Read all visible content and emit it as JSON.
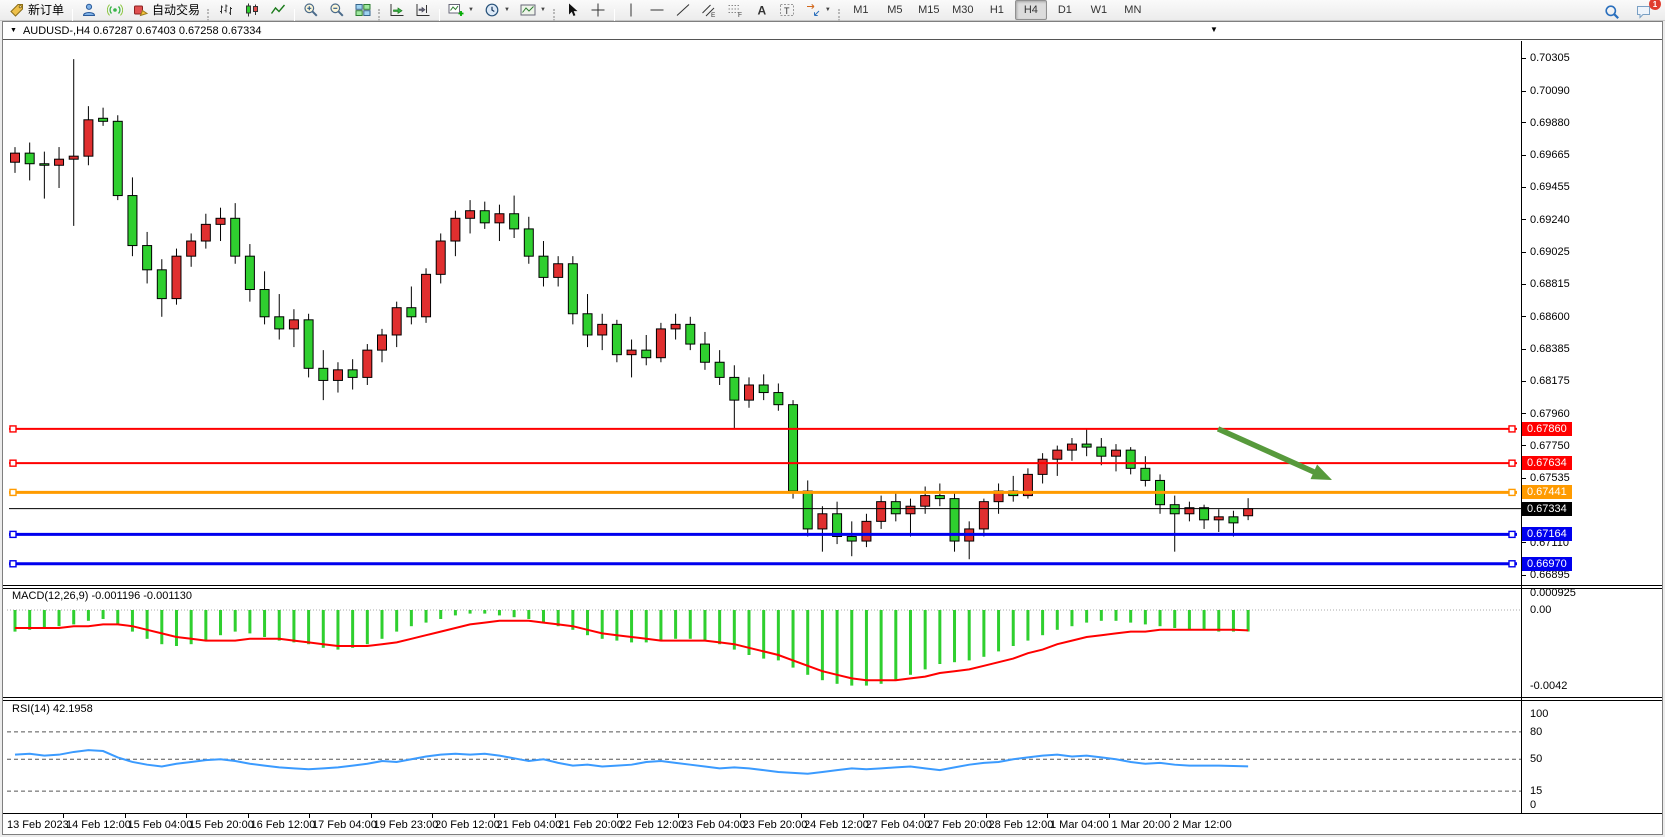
{
  "toolbar": {
    "buttons": [
      {
        "name": "new-order-button",
        "icon": "tag-icon",
        "label": "新订单"
      },
      {
        "type": "sep"
      },
      {
        "name": "metaeditor-button",
        "icon": "person-icon"
      },
      {
        "name": "signals-button",
        "icon": "signal-icon"
      },
      {
        "name": "auto-trading-button",
        "icon": "autotrade-icon",
        "label": "自动交易"
      },
      {
        "type": "grip"
      },
      {
        "name": "bar-chart-button",
        "icon": "bars-icon"
      },
      {
        "name": "candle-chart-button",
        "icon": "candles-icon"
      },
      {
        "name": "line-chart-button",
        "icon": "linechart-icon"
      },
      {
        "type": "sep"
      },
      {
        "name": "zoom-in-button",
        "icon": "zoom-in-icon"
      },
      {
        "name": "zoom-out-button",
        "icon": "zoom-out-icon"
      },
      {
        "name": "tile-windows-button",
        "icon": "tile-icon"
      },
      {
        "type": "grip"
      },
      {
        "name": "auto-scroll-button",
        "icon": "autoscroll-icon"
      },
      {
        "name": "chart-shift-button",
        "icon": "chartshift-icon"
      },
      {
        "type": "sep"
      },
      {
        "name": "indicators-button",
        "icon": "indicators-icon",
        "caret": true
      },
      {
        "name": "periods-button",
        "icon": "clock-icon",
        "caret": true
      },
      {
        "name": "templates-button",
        "icon": "template-icon",
        "caret": true
      },
      {
        "type": "grip"
      },
      {
        "name": "cursor-button",
        "icon": "cursor-icon"
      },
      {
        "name": "crosshair-button",
        "icon": "crosshair-icon"
      },
      {
        "type": "sep"
      },
      {
        "name": "vertical-line-button",
        "icon": "vline-icon"
      },
      {
        "name": "horizontal-line-button",
        "icon": "hline-icon"
      },
      {
        "name": "trendline-button",
        "icon": "trendline-icon"
      },
      {
        "name": "equidistant-channel-button",
        "icon": "channel-icon"
      },
      {
        "name": "fibonacci-button",
        "icon": "fibo-icon"
      },
      {
        "name": "text-button",
        "icon": "text-icon"
      },
      {
        "name": "label-button",
        "icon": "label-icon"
      },
      {
        "name": "arrows-button",
        "icon": "shapes-icon",
        "caret": true
      },
      {
        "type": "grip"
      }
    ],
    "timeframes": [
      "M1",
      "M5",
      "M15",
      "M30",
      "H1",
      "H4",
      "D1",
      "W1",
      "MN"
    ],
    "active_timeframe": "H4",
    "right_buttons": [
      {
        "name": "search-button",
        "icon": "search-icon"
      },
      {
        "name": "chat-button",
        "icon": "chat-icon",
        "badge": "1"
      }
    ]
  },
  "chart": {
    "title": "AUDUSD-,H4 0.67287 0.67403 0.67258 0.67334",
    "symbol": "AUDUSD-",
    "period": "H4",
    "last_ohlc": {
      "open": "0.67287",
      "high": "0.67403",
      "low": "0.67258",
      "close": "0.67334"
    }
  },
  "chart_data": [
    {
      "type": "candlestick",
      "title": "AUDUSD-,H4",
      "symbol": "AUDUSD-",
      "timeframe": "H4",
      "ylim": [
        0.6683,
        0.7042
      ],
      "y_ticks": [
        0.70305,
        0.7009,
        0.6988,
        0.69665,
        0.69455,
        0.6924,
        0.69025,
        0.68815,
        0.686,
        0.68385,
        0.68175,
        0.6796,
        0.6775,
        0.67535,
        0.6711,
        0.66895
      ],
      "x_tick_labels": [
        "13 Feb 2023",
        "14 Feb 12:00",
        "15 Feb 04:00",
        "15 Feb 20:00",
        "16 Feb 12:00",
        "17 Feb 04:00",
        "19 Feb 23:00",
        "20 Feb 12:00",
        "21 Feb 04:00",
        "21 Feb 20:00",
        "22 Feb 12:00",
        "23 Feb 04:00",
        "23 Feb 20:00",
        "24 Feb 12:00",
        "27 Feb 04:00",
        "27 Feb 20:00",
        "28 Feb 12:00",
        "1 Mar 04:00",
        "1 Mar 20:00",
        "2 Mar 12:00"
      ],
      "colors": {
        "bull": "#e02f2f",
        "bear": "#2fcf2f",
        "outline": "#000000"
      },
      "hlines": [
        {
          "value": 0.6786,
          "color": "#ff0000",
          "width": 2
        },
        {
          "value": 0.67634,
          "color": "#ff0000",
          "width": 2
        },
        {
          "value": 0.67441,
          "color": "#ff9b00",
          "width": 3
        },
        {
          "value": 0.67334,
          "color": "#000000",
          "width": 1,
          "role": "bid-price"
        },
        {
          "value": 0.67164,
          "color": "#0000ee",
          "width": 3
        },
        {
          "value": 0.6697,
          "color": "#0000ee",
          "width": 3
        }
      ],
      "annotations": [
        {
          "type": "arrow",
          "color": "#579a3c",
          "x1_frac": 0.7999,
          "price1": 0.6786,
          "x2_frac": 0.8752,
          "price2": 0.67523
        }
      ],
      "candles_ohlc": [
        [
          0.6962,
          0.6972,
          0.6955,
          0.6968
        ],
        [
          0.6968,
          0.6975,
          0.695,
          0.6961
        ],
        [
          0.6961,
          0.6969,
          0.6938,
          0.696
        ],
        [
          0.696,
          0.6972,
          0.6945,
          0.6964
        ],
        [
          0.6964,
          0.703,
          0.692,
          0.6966
        ],
        [
          0.6966,
          0.6999,
          0.696,
          0.699
        ],
        [
          0.6991,
          0.6998,
          0.6986,
          0.6989
        ],
        [
          0.6989,
          0.6993,
          0.6937,
          0.694
        ],
        [
          0.694,
          0.6952,
          0.69,
          0.6907
        ],
        [
          0.6907,
          0.6916,
          0.6882,
          0.6891
        ],
        [
          0.6891,
          0.6898,
          0.686,
          0.6872
        ],
        [
          0.6872,
          0.6905,
          0.6868,
          0.69
        ],
        [
          0.69,
          0.6915,
          0.6893,
          0.691
        ],
        [
          0.691,
          0.6928,
          0.6905,
          0.6921
        ],
        [
          0.6921,
          0.6932,
          0.691,
          0.6925
        ],
        [
          0.6925,
          0.6935,
          0.6895,
          0.69
        ],
        [
          0.69,
          0.6908,
          0.687,
          0.6878
        ],
        [
          0.6878,
          0.689,
          0.6855,
          0.686
        ],
        [
          0.686,
          0.6875,
          0.6845,
          0.6852
        ],
        [
          0.6852,
          0.6865,
          0.684,
          0.6858
        ],
        [
          0.6858,
          0.6862,
          0.682,
          0.6826
        ],
        [
          0.6826,
          0.6838,
          0.6805,
          0.6818
        ],
        [
          0.6818,
          0.683,
          0.681,
          0.6825
        ],
        [
          0.6825,
          0.6832,
          0.6812,
          0.682
        ],
        [
          0.682,
          0.6842,
          0.6815,
          0.6838
        ],
        [
          0.6838,
          0.6852,
          0.683,
          0.6848
        ],
        [
          0.6848,
          0.687,
          0.684,
          0.6866
        ],
        [
          0.6866,
          0.688,
          0.6855,
          0.686
        ],
        [
          0.686,
          0.6892,
          0.6856,
          0.6888
        ],
        [
          0.6888,
          0.6915,
          0.6882,
          0.691
        ],
        [
          0.691,
          0.693,
          0.69,
          0.6925
        ],
        [
          0.6925,
          0.6937,
          0.6915,
          0.693
        ],
        [
          0.693,
          0.6936,
          0.6918,
          0.6922
        ],
        [
          0.6922,
          0.6934,
          0.691,
          0.6928
        ],
        [
          0.6928,
          0.694,
          0.6912,
          0.6918
        ],
        [
          0.6918,
          0.6926,
          0.6895,
          0.69
        ],
        [
          0.69,
          0.691,
          0.688,
          0.6886
        ],
        [
          0.6886,
          0.69,
          0.688,
          0.6895
        ],
        [
          0.6895,
          0.69,
          0.6855,
          0.6862
        ],
        [
          0.6862,
          0.6875,
          0.684,
          0.6848
        ],
        [
          0.6848,
          0.6862,
          0.6838,
          0.6855
        ],
        [
          0.6855,
          0.6858,
          0.683,
          0.6835
        ],
        [
          0.6835,
          0.6845,
          0.682,
          0.6838
        ],
        [
          0.6838,
          0.6848,
          0.6828,
          0.6833
        ],
        [
          0.6833,
          0.6856,
          0.683,
          0.6852
        ],
        [
          0.6852,
          0.6862,
          0.6845,
          0.6855
        ],
        [
          0.6855,
          0.686,
          0.6838,
          0.6842
        ],
        [
          0.6842,
          0.685,
          0.6825,
          0.683
        ],
        [
          0.683,
          0.6838,
          0.6815,
          0.682
        ],
        [
          0.682,
          0.6828,
          0.6786,
          0.6805
        ],
        [
          0.6805,
          0.682,
          0.68,
          0.6815
        ],
        [
          0.6815,
          0.6822,
          0.6805,
          0.681
        ],
        [
          0.681,
          0.6816,
          0.6798,
          0.6802
        ],
        [
          0.6802,
          0.6805,
          0.674,
          0.6745
        ],
        [
          0.6745,
          0.6752,
          0.6715,
          0.672
        ],
        [
          0.672,
          0.6735,
          0.6705,
          0.673
        ],
        [
          0.673,
          0.6738,
          0.671,
          0.6715
        ],
        [
          0.6715,
          0.6725,
          0.6702,
          0.6712
        ],
        [
          0.6712,
          0.673,
          0.6708,
          0.6725
        ],
        [
          0.6725,
          0.6742,
          0.672,
          0.6738
        ],
        [
          0.6738,
          0.6745,
          0.6725,
          0.673
        ],
        [
          0.673,
          0.674,
          0.6715,
          0.6735
        ],
        [
          0.6735,
          0.6748,
          0.673,
          0.6742
        ],
        [
          0.6742,
          0.675,
          0.6735,
          0.674
        ],
        [
          0.674,
          0.6745,
          0.6705,
          0.6712
        ],
        [
          0.6712,
          0.6725,
          0.67,
          0.672
        ],
        [
          0.672,
          0.674,
          0.6715,
          0.6738
        ],
        [
          0.6738,
          0.675,
          0.673,
          0.6745
        ],
        [
          0.6745,
          0.6755,
          0.6738,
          0.6742
        ],
        [
          0.6742,
          0.676,
          0.674,
          0.6756
        ],
        [
          0.6756,
          0.677,
          0.675,
          0.6766
        ],
        [
          0.6766,
          0.6775,
          0.6755,
          0.6772
        ],
        [
          0.6772,
          0.678,
          0.6765,
          0.6776
        ],
        [
          0.6776,
          0.6786,
          0.6768,
          0.6774
        ],
        [
          0.6774,
          0.678,
          0.6762,
          0.6768
        ],
        [
          0.6768,
          0.6776,
          0.6758,
          0.6772
        ],
        [
          0.6772,
          0.6774,
          0.6756,
          0.676
        ],
        [
          0.676,
          0.6768,
          0.6748,
          0.6752
        ],
        [
          0.6752,
          0.6756,
          0.673,
          0.6736
        ],
        [
          0.6736,
          0.6742,
          0.6705,
          0.673
        ],
        [
          0.673,
          0.6738,
          0.6725,
          0.6734
        ],
        [
          0.6734,
          0.6736,
          0.672,
          0.6726
        ],
        [
          0.6726,
          0.6733,
          0.6718,
          0.6728
        ],
        [
          0.6728,
          0.6732,
          0.6715,
          0.6724
        ],
        [
          0.67287,
          0.67403,
          0.67258,
          0.67334
        ]
      ]
    },
    {
      "type": "bar-line",
      "name": "MACD",
      "label": "MACD(12,26,9) -0.001196 -0.001130",
      "params": "12,26,9",
      "current": {
        "macd": -0.001196,
        "signal": -0.00113
      },
      "ylim": [
        -0.005,
        0.00117
      ],
      "y_tick_labels": [
        "0.000925",
        "0.00",
        "-0.0042"
      ],
      "y_tick_values": [
        0.000925,
        0.0,
        -0.0042
      ],
      "colors": {
        "histogram": "#2fcf2f",
        "signal": "#ff0000"
      },
      "histogram": [
        -0.0012,
        -0.0011,
        -0.001,
        -0.0009,
        -0.0008,
        -0.0006,
        -0.0005,
        -0.0008,
        -0.0012,
        -0.0016,
        -0.0019,
        -0.002,
        -0.0019,
        -0.0017,
        -0.0014,
        -0.0012,
        -0.0013,
        -0.0015,
        -0.0017,
        -0.0018,
        -0.0019,
        -0.0021,
        -0.0022,
        -0.0021,
        -0.0019,
        -0.0016,
        -0.0012,
        -0.0009,
        -0.0007,
        -0.0005,
        -0.0003,
        -0.0002,
        -0.0002,
        -0.0003,
        -0.0004,
        -0.0005,
        -0.0007,
        -0.0009,
        -0.0011,
        -0.0014,
        -0.0016,
        -0.0017,
        -0.0018,
        -0.0018,
        -0.0017,
        -0.0016,
        -0.0016,
        -0.0017,
        -0.0019,
        -0.0022,
        -0.0025,
        -0.0027,
        -0.0028,
        -0.0032,
        -0.0036,
        -0.0039,
        -0.0041,
        -0.0042,
        -0.0042,
        -0.0041,
        -0.0039,
        -0.0036,
        -0.0033,
        -0.003,
        -0.0029,
        -0.0028,
        -0.0026,
        -0.0023,
        -0.002,
        -0.0017,
        -0.0014,
        -0.0011,
        -0.0009,
        -0.0007,
        -0.0006,
        -0.0006,
        -0.0007,
        -0.0008,
        -0.0009,
        -0.001,
        -0.0011,
        -0.0011,
        -0.0012,
        -0.0012,
        -0.001196
      ],
      "signal_line": [
        -0.001,
        -0.001,
        -0.001,
        -0.001,
        -0.0009,
        -0.0009,
        -0.0008,
        -0.0008,
        -0.0009,
        -0.0011,
        -0.0013,
        -0.0015,
        -0.0016,
        -0.0017,
        -0.0017,
        -0.0017,
        -0.0016,
        -0.0016,
        -0.0016,
        -0.0017,
        -0.0018,
        -0.0019,
        -0.002,
        -0.002,
        -0.002,
        -0.0019,
        -0.0018,
        -0.0016,
        -0.0014,
        -0.0012,
        -0.001,
        -0.0008,
        -0.0007,
        -0.0006,
        -0.0006,
        -0.0006,
        -0.0007,
        -0.0008,
        -0.0009,
        -0.0011,
        -0.0013,
        -0.0014,
        -0.0015,
        -0.0016,
        -0.0017,
        -0.0017,
        -0.0017,
        -0.0017,
        -0.0018,
        -0.0019,
        -0.0021,
        -0.0023,
        -0.0025,
        -0.0028,
        -0.0031,
        -0.0034,
        -0.0036,
        -0.0038,
        -0.0039,
        -0.0039,
        -0.0039,
        -0.0038,
        -0.0037,
        -0.0035,
        -0.0034,
        -0.0033,
        -0.0031,
        -0.0029,
        -0.0027,
        -0.0024,
        -0.0022,
        -0.0019,
        -0.0017,
        -0.0015,
        -0.0014,
        -0.0013,
        -0.0012,
        -0.0012,
        -0.0011,
        -0.0011,
        -0.0011,
        -0.0011,
        -0.0011,
        -0.0011,
        -0.00113
      ]
    },
    {
      "type": "line",
      "name": "RSI",
      "label": "RSI(14) 42.1958",
      "period": 14,
      "value": 42.1958,
      "ylim": [
        -8,
        114
      ],
      "levels": [
        80,
        50,
        15
      ],
      "y_tick_labels": [
        "100",
        "80",
        "50",
        "15",
        "0"
      ],
      "y_tick_values": [
        100,
        80,
        50,
        15,
        0
      ],
      "color": "#3b9bff",
      "values": [
        55,
        56,
        54,
        55,
        58,
        60,
        59,
        52,
        47,
        44,
        42,
        45,
        47,
        49,
        50,
        48,
        45,
        43,
        41,
        40,
        39,
        40,
        41,
        43,
        45,
        48,
        47,
        50,
        53,
        55,
        56,
        55,
        56,
        54,
        51,
        48,
        50,
        46,
        43,
        44,
        42,
        43,
        44,
        47,
        48,
        46,
        44,
        42,
        40,
        41,
        40,
        38,
        36,
        35,
        34,
        36,
        38,
        40,
        39,
        40,
        41,
        42,
        40,
        38,
        41,
        44,
        46,
        47,
        50,
        52,
        54,
        55,
        53,
        54,
        52,
        50,
        47,
        45,
        46,
        44,
        43,
        43,
        43,
        42.5,
        42.2
      ]
    }
  ]
}
